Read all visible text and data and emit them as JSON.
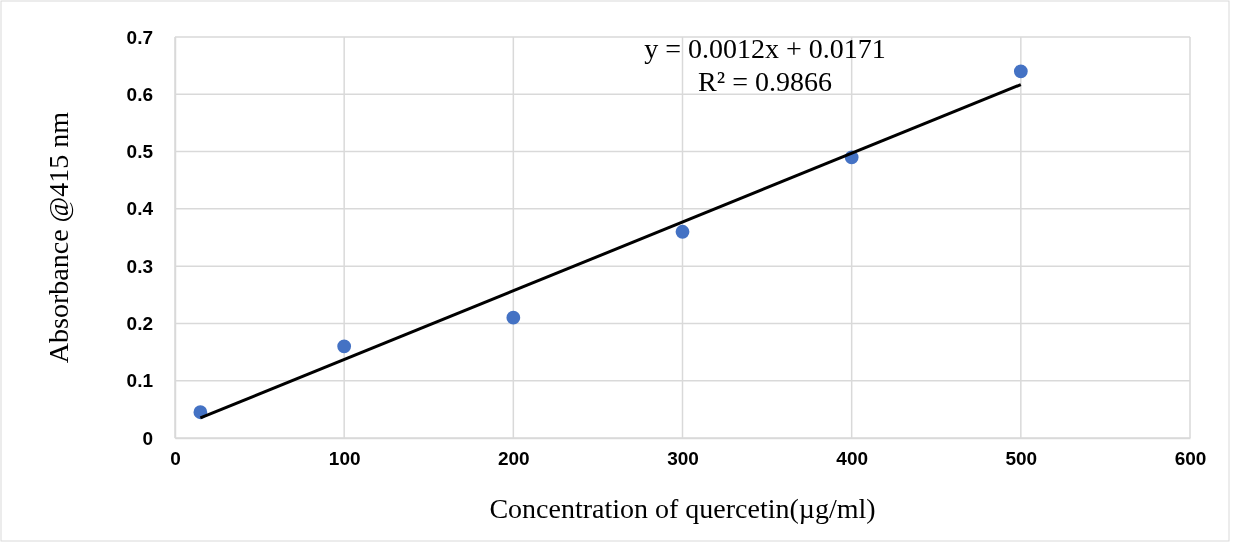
{
  "chart_data": {
    "type": "scatter",
    "xlabel": "Concentration of quercetin(µg/ml)",
    "ylabel": "Absorbance @415 nm",
    "annotations": [
      "y = 0.0012x + 0.0171",
      "R² = 0.9866"
    ],
    "series": [
      {
        "type": "scatter",
        "color": "#4472c4",
        "marker": "circle",
        "x": [
          15,
          100,
          200,
          300,
          400,
          500
        ],
        "values": [
          0.045,
          0.16,
          0.21,
          0.36,
          0.49,
          0.64
        ]
      },
      {
        "type": "line",
        "color": "#000000",
        "marker": "none",
        "line_style": "solid",
        "x": [
          15,
          500
        ],
        "values": [
          0.035,
          0.617
        ]
      }
    ],
    "xlim": [
      0,
      600
    ],
    "xticks": [
      0,
      100,
      200,
      300,
      400,
      500,
      600
    ],
    "ylim": [
      0,
      0.7
    ],
    "yticks": [
      0,
      0.1,
      0.2,
      0.3,
      0.4,
      0.5,
      0.6,
      0.7
    ],
    "grid": true
  }
}
